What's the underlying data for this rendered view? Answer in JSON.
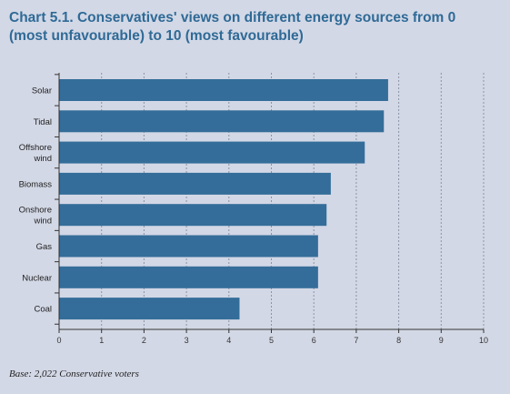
{
  "title_lines": [
    "Chart 5.1. Conservatives' views on different energy sources from 0",
    "(most unfavourable) to 10 (most favourable)"
  ],
  "footnote": "Base: 2,022 Conservative voters",
  "colors": {
    "background": "#d3d8e6",
    "bar": "#346d99",
    "title": "#2f6a96"
  },
  "chart_data": {
    "type": "bar",
    "orientation": "horizontal",
    "categories": [
      [
        "Solar"
      ],
      [
        "Tidal"
      ],
      [
        "Offshore",
        "wind"
      ],
      [
        "Biomass"
      ],
      [
        "Onshore",
        "wind"
      ],
      [
        "Gas"
      ],
      [
        "Nuclear"
      ],
      [
        "Coal"
      ]
    ],
    "values": [
      7.75,
      7.65,
      7.2,
      6.4,
      6.3,
      6.1,
      6.1,
      4.25
    ],
    "xlim": [
      0,
      10
    ],
    "xticks": [
      0,
      1,
      2,
      3,
      4,
      5,
      6,
      7,
      8,
      9,
      10
    ],
    "grid": "vertical-dashed",
    "xlabel": "",
    "ylabel": ""
  }
}
